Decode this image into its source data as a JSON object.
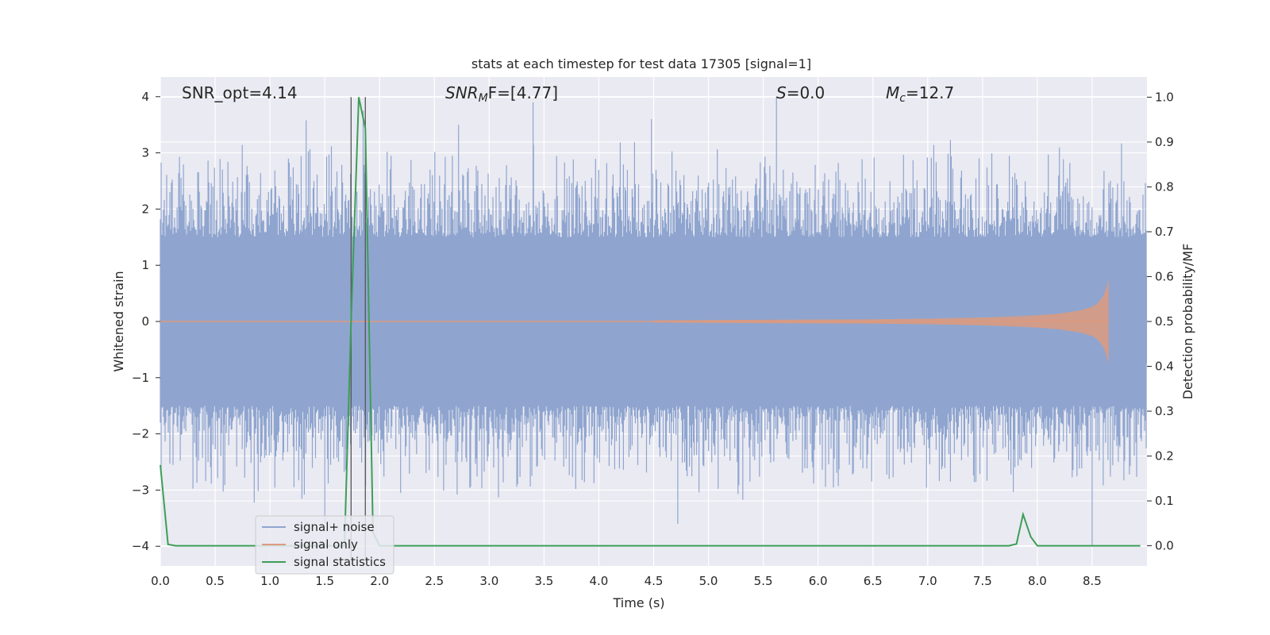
{
  "chart_data": {
    "type": "line",
    "title": "stats at each timestep for test data 17305 [signal=1]",
    "xlabel": "Time (s)",
    "ylabel": "Whitened strain",
    "ylabel_right": "Detection probability/MF",
    "xlim": [
      0.0,
      9.0
    ],
    "ylim": [
      -4.35,
      4.35
    ],
    "ylim_right": [
      -0.045,
      1.045
    ],
    "x_ticks": [
      "0.0",
      "0.5",
      "1.0",
      "1.5",
      "2.0",
      "2.5",
      "3.0",
      "3.5",
      "4.0",
      "4.5",
      "5.0",
      "5.5",
      "6.0",
      "6.5",
      "7.0",
      "7.5",
      "8.0",
      "8.5"
    ],
    "y_ticks": [
      "4",
      "3",
      "2",
      "1",
      "0",
      "−1",
      "−2",
      "−3",
      "−4"
    ],
    "y_ticks_right": [
      "1.0",
      "0.9",
      "0.8",
      "0.7",
      "0.6",
      "0.5",
      "0.4",
      "0.3",
      "0.2",
      "0.1",
      "0.0"
    ],
    "annotations": {
      "snr_opt": "SNR_opt=4.14",
      "snr_mf_main": "SNR",
      "snr_mf_sub": "M",
      "snr_mf_rest": "F=[4.77]",
      "s_var": "S",
      "s_rest": "=0.0",
      "mc_main": "M",
      "mc_sub": "c",
      "mc_rest": "=12.7"
    },
    "legend": {
      "placement": "lower-left",
      "entries": [
        "signal+ noise",
        "signal only",
        "signal statistics"
      ]
    },
    "colors": {
      "noise": "#8fa5cf",
      "signal": "#dd9a7e",
      "statistics": "#3d9e57",
      "background": "#eaeaf2",
      "vline": "#555555"
    },
    "series": [
      {
        "name": "signal+ noise",
        "description_values": "dense whitened strain, approx within [-4.0, 4.0]",
        "band_core": [
          -1.5,
          1.5
        ],
        "extremes": [
          {
            "x": 1.33,
            "y": 3.58
          },
          {
            "x": 1.85,
            "y": 3.75
          },
          {
            "x": 2.72,
            "y": 3.5
          },
          {
            "x": 3.4,
            "y": 3.9
          },
          {
            "x": 4.48,
            "y": 3.6
          },
          {
            "x": 5.62,
            "y": 4.0
          },
          {
            "x": 1.5,
            "y": -3.6
          },
          {
            "x": 4.72,
            "y": -3.6
          },
          {
            "x": 8.5,
            "y": -4.0
          }
        ]
      },
      {
        "name": "signal only",
        "description_values": "chirp signal, amplitude growing toward merger",
        "x": [
          4.5,
          5.5,
          6.5,
          7.0,
          7.5,
          7.8,
          8.0,
          8.2,
          8.4,
          8.5,
          8.55,
          8.6,
          8.63,
          8.65
        ],
        "amplitude": [
          0.02,
          0.03,
          0.04,
          0.05,
          0.07,
          0.09,
          0.11,
          0.14,
          0.2,
          0.26,
          0.32,
          0.45,
          0.6,
          0.75
        ]
      },
      {
        "name": "signal statistics",
        "axis": "right",
        "x": [
          0.0,
          0.07,
          0.14,
          1.68,
          1.74,
          1.81,
          1.87,
          1.94,
          2.0,
          7.74,
          7.81,
          7.87,
          7.94,
          8.0,
          8.94
        ],
        "values": [
          0.18,
          0.003,
          0.0,
          0.0,
          0.5,
          1.0,
          0.93,
          0.03,
          0.0,
          0.0,
          0.004,
          0.07,
          0.02,
          0.0,
          0.0
        ]
      }
    ],
    "vertical_lines": [
      1.74,
      1.87
    ]
  }
}
